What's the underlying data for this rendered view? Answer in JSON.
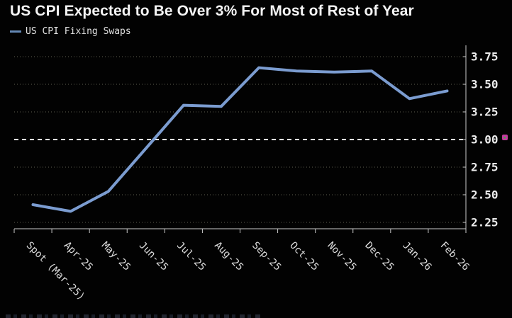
{
  "header": {
    "title": "US CPI Expected to Be Over 3% For Most of Rest of Year",
    "legend_label": "US CPI Fixing Swaps"
  },
  "colors": {
    "background": "#000000",
    "title_text": "#f4f4f4",
    "axis_text": "#ececec",
    "axis_line": "#c9c9c9",
    "grid_dotted": "rgba(205,205,175,0.45)",
    "line": "#7b9cd0",
    "legend_swatch": "#6488b4",
    "threshold_line": "#ffffff",
    "annotation_pink": "#c23a9d",
    "annotation_green": "#3fae4a"
  },
  "chart_data": {
    "type": "line",
    "title": "US CPI Expected to Be Over 3% For Most of Rest of Year",
    "categories": [
      "Spot (Mar-25)",
      "Apr-25",
      "May-25",
      "Jun-25",
      "Jul-25",
      "Aug-25",
      "Sep-25",
      "Oct-25",
      "Nov-25",
      "Dec-25",
      "Jan-26",
      "Feb-26"
    ],
    "series": [
      {
        "name": "US CPI Fixing Swaps",
        "values": [
          2.41,
          2.35,
          2.53,
          2.92,
          3.31,
          3.3,
          3.65,
          3.62,
          3.61,
          3.62,
          3.37,
          3.44
        ]
      }
    ],
    "ylim": [
      2.25,
      3.75
    ],
    "yticks": [
      2.25,
      2.5,
      2.75,
      3.0,
      3.25,
      3.5,
      3.75
    ],
    "ytick_labels": [
      "2.25",
      "2.50",
      "2.75",
      "3.00",
      "3.25",
      "3.50",
      "3.75"
    ],
    "threshold": 3.0,
    "grid": "horizontal-dotted",
    "legend_position": "top-left",
    "y_axis_side": "right",
    "x_label_rotation_deg": 45
  }
}
